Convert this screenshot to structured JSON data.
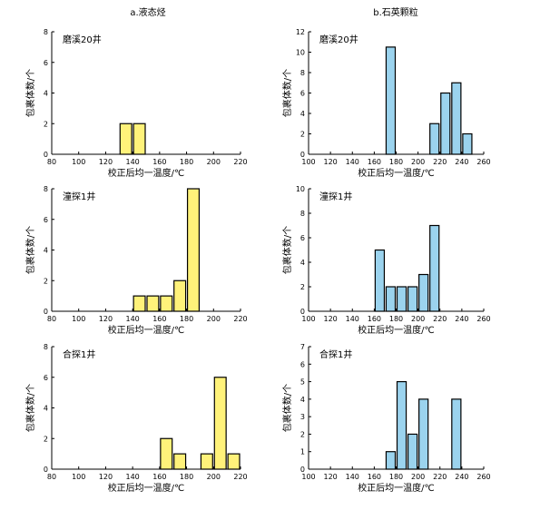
{
  "figure": {
    "column_titles": [
      "a.液态烃",
      "b.石英颗粒"
    ]
  },
  "colors": {
    "left_fill": "#fff27a",
    "right_fill": "#9bd3ee",
    "bar_stroke": "#000000"
  },
  "chart_data": [
    {
      "type": "bar",
      "id": "a1",
      "title": "磨溪20井",
      "xlabel": "校正后均一温度/℃",
      "ylabel": "包裹体数/个",
      "xlim": [
        80,
        220
      ],
      "ylim": [
        0,
        8
      ],
      "xticks": [
        80,
        100,
        120,
        140,
        160,
        180,
        200,
        220
      ],
      "yticks": [
        0,
        2,
        4,
        6,
        8
      ],
      "bin_width": 10,
      "bins": [
        {
          "x": [
            130,
            140
          ],
          "y": 2
        },
        {
          "x": [
            140,
            150
          ],
          "y": 2
        }
      ]
    },
    {
      "type": "bar",
      "id": "b1",
      "title": "磨溪20井",
      "xlabel": "校正后均一温度/℃",
      "ylabel": "包裹体数/个",
      "xlim": [
        100,
        260
      ],
      "ylim": [
        0,
        12
      ],
      "xticks": [
        100,
        120,
        140,
        160,
        180,
        200,
        220,
        240,
        260
      ],
      "yticks": [
        0,
        2,
        4,
        6,
        8,
        10,
        12
      ],
      "bin_width": 10,
      "bins": [
        {
          "x": [
            170,
            180
          ],
          "y": 10.5
        },
        {
          "x": [
            210,
            220
          ],
          "y": 3
        },
        {
          "x": [
            220,
            230
          ],
          "y": 6
        },
        {
          "x": [
            230,
            240
          ],
          "y": 7
        },
        {
          "x": [
            240,
            250
          ],
          "y": 2
        }
      ]
    },
    {
      "type": "bar",
      "id": "a2",
      "title": "潼探1井",
      "xlabel": "校正后均一温度/℃",
      "ylabel": "包裹体数/个",
      "xlim": [
        80,
        220
      ],
      "ylim": [
        0,
        8
      ],
      "xticks": [
        80,
        100,
        120,
        140,
        160,
        180,
        200,
        220
      ],
      "yticks": [
        0,
        2,
        4,
        6,
        8
      ],
      "bin_width": 10,
      "bins": [
        {
          "x": [
            140,
            150
          ],
          "y": 1
        },
        {
          "x": [
            150,
            160
          ],
          "y": 1
        },
        {
          "x": [
            160,
            170
          ],
          "y": 1
        },
        {
          "x": [
            170,
            180
          ],
          "y": 2
        },
        {
          "x": [
            180,
            190
          ],
          "y": 8
        }
      ]
    },
    {
      "type": "bar",
      "id": "b2",
      "title": "潼探1井",
      "xlabel": "校正后均一温度/℃",
      "ylabel": "包裹体数/个",
      "xlim": [
        100,
        260
      ],
      "ylim": [
        0,
        10
      ],
      "xticks": [
        100,
        120,
        140,
        160,
        180,
        200,
        220,
        240,
        260
      ],
      "yticks": [
        0,
        2,
        4,
        6,
        8,
        10
      ],
      "bin_width": 10,
      "bins": [
        {
          "x": [
            160,
            170
          ],
          "y": 5
        },
        {
          "x": [
            170,
            180
          ],
          "y": 2
        },
        {
          "x": [
            180,
            190
          ],
          "y": 2
        },
        {
          "x": [
            190,
            200
          ],
          "y": 2
        },
        {
          "x": [
            200,
            210
          ],
          "y": 3
        },
        {
          "x": [
            210,
            220
          ],
          "y": 7
        }
      ]
    },
    {
      "type": "bar",
      "id": "a3",
      "title": "合探1井",
      "xlabel": "校正后均一温度/℃",
      "ylabel": "包裹体数/个",
      "xlim": [
        80,
        220
      ],
      "ylim": [
        0,
        8
      ],
      "xticks": [
        80,
        100,
        120,
        140,
        160,
        180,
        200,
        220
      ],
      "yticks": [
        0,
        2,
        4,
        6,
        8
      ],
      "bin_width": 10,
      "bins": [
        {
          "x": [
            160,
            170
          ],
          "y": 2
        },
        {
          "x": [
            170,
            180
          ],
          "y": 1
        },
        {
          "x": [
            190,
            200
          ],
          "y": 1
        },
        {
          "x": [
            200,
            210
          ],
          "y": 6
        },
        {
          "x": [
            210,
            220
          ],
          "y": 1
        }
      ]
    },
    {
      "type": "bar",
      "id": "b3",
      "title": "合探1井",
      "xlabel": "校正后均一温度/℃",
      "ylabel": "包裹体数/个",
      "xlim": [
        100,
        260
      ],
      "ylim": [
        0,
        7
      ],
      "xticks": [
        100,
        120,
        140,
        160,
        180,
        200,
        220,
        240,
        260
      ],
      "yticks": [
        0,
        1,
        2,
        3,
        4,
        5,
        6,
        7
      ],
      "bin_width": 10,
      "bins": [
        {
          "x": [
            170,
            180
          ],
          "y": 1
        },
        {
          "x": [
            180,
            190
          ],
          "y": 5
        },
        {
          "x": [
            190,
            200
          ],
          "y": 2
        },
        {
          "x": [
            200,
            210
          ],
          "y": 4
        },
        {
          "x": [
            230,
            240
          ],
          "y": 4
        }
      ]
    }
  ]
}
